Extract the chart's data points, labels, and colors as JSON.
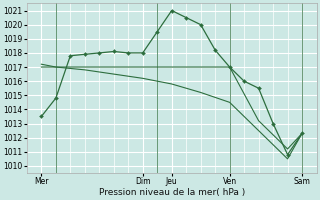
{
  "bg_color": "#cce8e4",
  "grid_color": "#ffffff",
  "line_color": "#2d6e3e",
  "ylim": [
    1009.5,
    1021.5
  ],
  "yticks": [
    1010,
    1011,
    1012,
    1013,
    1014,
    1015,
    1016,
    1017,
    1018,
    1019,
    1020,
    1021
  ],
  "xlabel": "Pression niveau de la mer( hPa )",
  "day_labels": [
    "Mer",
    "Dim",
    "Jeu",
    "Ven",
    "Sam"
  ],
  "day_positions": [
    0.5,
    4.0,
    5.0,
    7.0,
    9.5
  ],
  "vline_positions": [
    1.0,
    4.5,
    7.0,
    9.5
  ],
  "xlim": [
    0,
    10
  ],
  "series": [
    {
      "x": [
        0.5,
        1.0,
        1.5,
        2.0,
        2.5,
        3.0,
        3.5,
        4.0,
        4.5,
        5.0,
        5.5,
        6.0,
        6.5,
        7.0,
        7.5,
        8.0,
        8.5,
        9.0,
        9.5
      ],
      "y": [
        1013.5,
        1014.8,
        1017.8,
        1017.9,
        1018.0,
        1018.1,
        1018.0,
        1018.0,
        1019.5,
        1021.0,
        1020.5,
        1020.0,
        1018.2,
        1017.0,
        1016.0,
        1015.5,
        1013.0,
        1010.8,
        1012.3
      ],
      "markers": true
    },
    {
      "x": [
        0.5,
        1.0,
        2.0,
        3.0,
        4.0,
        4.5,
        5.0,
        6.0,
        7.0,
        8.0,
        9.0,
        9.5
      ],
      "y": [
        1017.0,
        1017.0,
        1017.0,
        1017.0,
        1017.0,
        1017.0,
        1017.0,
        1017.0,
        1017.0,
        1013.2,
        1011.2,
        1012.3
      ],
      "markers": false
    },
    {
      "x": [
        0.5,
        1.0,
        2.0,
        3.0,
        4.0,
        5.0,
        6.0,
        7.0,
        8.0,
        9.0,
        9.5
      ],
      "y": [
        1017.2,
        1017.0,
        1016.8,
        1016.5,
        1016.2,
        1015.8,
        1015.2,
        1014.5,
        1012.5,
        1010.5,
        1012.3
      ],
      "markers": false
    }
  ],
  "tick_fontsize": 5.5,
  "label_fontsize": 6.5
}
